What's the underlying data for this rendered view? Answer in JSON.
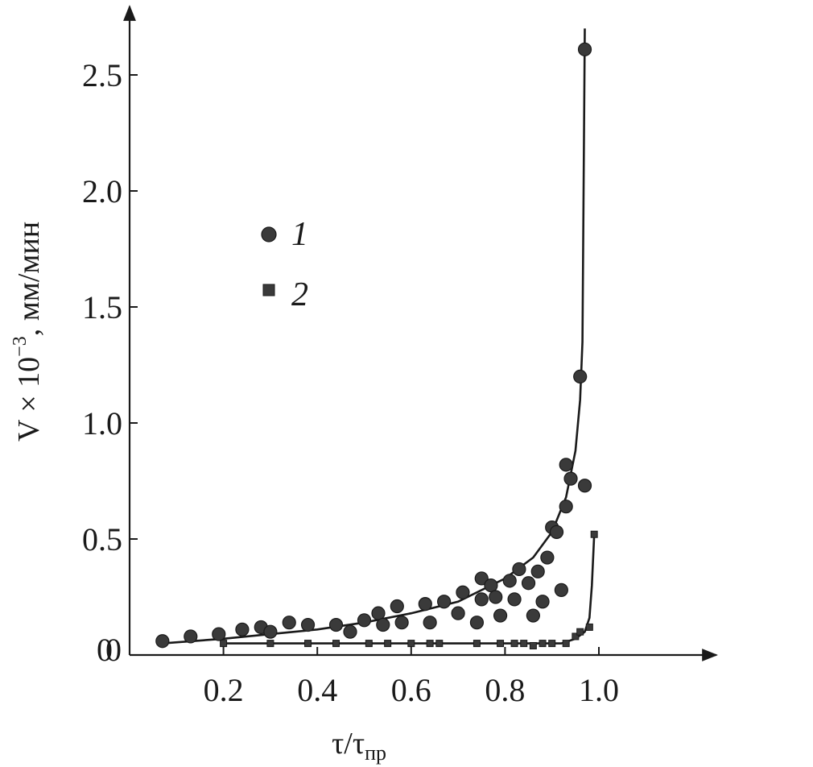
{
  "chart_data": {
    "type": "scatter",
    "xlabel": "τ/τ",
    "xlabel_sub": "пр",
    "ylabel": "V × 10",
    "ylabel_exp": "−3",
    "ylabel_unit": ", мм/мин",
    "origin_label": "0",
    "xlim": [
      0,
      1.2
    ],
    "ylim": [
      0,
      2.7
    ],
    "xticks": [
      {
        "value": 0.2,
        "label": "0.2"
      },
      {
        "value": 0.4,
        "label": "0.4"
      },
      {
        "value": 0.6,
        "label": "0.6"
      },
      {
        "value": 0.8,
        "label": "0.8"
      },
      {
        "value": 1.0,
        "label": "1.0"
      }
    ],
    "yticks": [
      {
        "value": 0.5,
        "label": "0.5"
      },
      {
        "value": 1.0,
        "label": "1.0"
      },
      {
        "value": 1.5,
        "label": "1.5"
      },
      {
        "value": 2.0,
        "label": "2.0"
      },
      {
        "value": 2.5,
        "label": "2.5"
      }
    ],
    "legend_position": "upper-left",
    "colors": {
      "ink": "#1a1a1a",
      "marker": "#3a3a3a"
    },
    "series": [
      {
        "name": "1",
        "marker": "circle",
        "points": [
          [
            0.07,
            0.06
          ],
          [
            0.13,
            0.08
          ],
          [
            0.19,
            0.09
          ],
          [
            0.24,
            0.11
          ],
          [
            0.28,
            0.12
          ],
          [
            0.3,
            0.1
          ],
          [
            0.34,
            0.14
          ],
          [
            0.38,
            0.13
          ],
          [
            0.44,
            0.13
          ],
          [
            0.47,
            0.1
          ],
          [
            0.5,
            0.15
          ],
          [
            0.53,
            0.18
          ],
          [
            0.54,
            0.13
          ],
          [
            0.57,
            0.21
          ],
          [
            0.58,
            0.14
          ],
          [
            0.63,
            0.22
          ],
          [
            0.64,
            0.14
          ],
          [
            0.67,
            0.23
          ],
          [
            0.7,
            0.18
          ],
          [
            0.71,
            0.27
          ],
          [
            0.74,
            0.14
          ],
          [
            0.75,
            0.24
          ],
          [
            0.75,
            0.33
          ],
          [
            0.77,
            0.3
          ],
          [
            0.78,
            0.25
          ],
          [
            0.79,
            0.17
          ],
          [
            0.81,
            0.32
          ],
          [
            0.82,
            0.24
          ],
          [
            0.83,
            0.37
          ],
          [
            0.85,
            0.31
          ],
          [
            0.86,
            0.17
          ],
          [
            0.87,
            0.36
          ],
          [
            0.88,
            0.23
          ],
          [
            0.89,
            0.42
          ],
          [
            0.9,
            0.55
          ],
          [
            0.91,
            0.53
          ],
          [
            0.92,
            0.28
          ],
          [
            0.93,
            0.64
          ],
          [
            0.93,
            0.82
          ],
          [
            0.94,
            0.76
          ],
          [
            0.96,
            1.2
          ],
          [
            0.97,
            0.73
          ],
          [
            0.97,
            2.61
          ]
        ],
        "fit": [
          [
            0.07,
            0.05
          ],
          [
            0.2,
            0.07
          ],
          [
            0.3,
            0.09
          ],
          [
            0.4,
            0.11
          ],
          [
            0.5,
            0.14
          ],
          [
            0.6,
            0.18
          ],
          [
            0.7,
            0.23
          ],
          [
            0.8,
            0.33
          ],
          [
            0.86,
            0.42
          ],
          [
            0.9,
            0.53
          ],
          [
            0.93,
            0.68
          ],
          [
            0.95,
            0.88
          ],
          [
            0.96,
            1.1
          ],
          [
            0.965,
            1.35
          ],
          [
            0.97,
            2.7
          ]
        ]
      },
      {
        "name": "2",
        "marker": "square",
        "points": [
          [
            0.2,
            0.05
          ],
          [
            0.3,
            0.05
          ],
          [
            0.38,
            0.05
          ],
          [
            0.44,
            0.05
          ],
          [
            0.51,
            0.05
          ],
          [
            0.55,
            0.05
          ],
          [
            0.6,
            0.05
          ],
          [
            0.64,
            0.05
          ],
          [
            0.66,
            0.05
          ],
          [
            0.74,
            0.05
          ],
          [
            0.79,
            0.05
          ],
          [
            0.82,
            0.05
          ],
          [
            0.84,
            0.05
          ],
          [
            0.86,
            0.04
          ],
          [
            0.88,
            0.05
          ],
          [
            0.9,
            0.05
          ],
          [
            0.93,
            0.05
          ],
          [
            0.95,
            0.08
          ],
          [
            0.96,
            0.1
          ],
          [
            0.98,
            0.12
          ],
          [
            0.99,
            0.52
          ]
        ],
        "fit": [
          [
            0.2,
            0.05
          ],
          [
            0.8,
            0.05
          ],
          [
            0.92,
            0.05
          ],
          [
            0.95,
            0.07
          ],
          [
            0.97,
            0.1
          ],
          [
            0.98,
            0.16
          ],
          [
            0.985,
            0.3
          ],
          [
            0.99,
            0.52
          ]
        ]
      }
    ]
  }
}
